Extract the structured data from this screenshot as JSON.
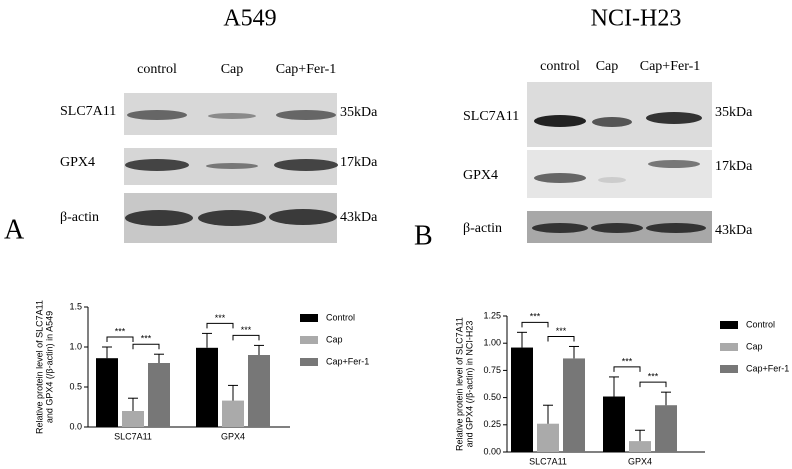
{
  "panels": [
    {
      "letter": "A",
      "title": "A549",
      "lanes": [
        "control",
        "Cap",
        "Cap+Fer-1"
      ],
      "rows": [
        {
          "label": "SLC7A11",
          "size": "35kDa"
        },
        {
          "label": "GPX4",
          "size": "17kDa"
        },
        {
          "label": "β-actin",
          "size": "43kDa"
        }
      ]
    },
    {
      "letter": "B",
      "title": "NCI-H23",
      "lanes": [
        "control",
        "Cap",
        "Cap+Fer-1"
      ],
      "rows": [
        {
          "label": "SLC7A11",
          "size": "35kDa"
        },
        {
          "label": "GPX4",
          "size": "17kDa"
        },
        {
          "label": "β-actin",
          "size": "43kDa"
        }
      ]
    }
  ],
  "chart_data": [
    {
      "type": "bar",
      "y_label": [
        "Relative protein level of SLC7A11",
        "and GPX4 (/β-actin) in A549"
      ],
      "categories": [
        "SLC7A11",
        "GPX4"
      ],
      "series": [
        {
          "name": "Control",
          "color": "#000000",
          "values": [
            0.86,
            0.99
          ],
          "errors": [
            0.14,
            0.18
          ]
        },
        {
          "name": "Cap",
          "color": "#aaaaaa",
          "values": [
            0.2,
            0.33
          ],
          "errors": [
            0.16,
            0.19
          ]
        },
        {
          "name": "Cap+Fer-1",
          "color": "#777777",
          "values": [
            0.8,
            0.9
          ],
          "errors": [
            0.11,
            0.12
          ]
        }
      ],
      "annotations": [
        "***",
        "***",
        "***",
        "***"
      ],
      "ylim": [
        0,
        1.5
      ],
      "yticks": [
        {
          "value": 0,
          "label": "0.0"
        },
        0.5,
        {
          "value": 1,
          "label": "1.0"
        },
        1.5
      ]
    },
    {
      "type": "bar",
      "y_label": [
        "Relative protein level of SLC7A11",
        "and GPX4 (/β-actin) in NCI-H23"
      ],
      "categories": [
        "SLC7A11",
        "GPX4"
      ],
      "series": [
        {
          "name": "Control",
          "color": "#000000",
          "values": [
            0.96,
            0.51
          ],
          "errors": [
            0.14,
            0.18
          ]
        },
        {
          "name": "Cap",
          "color": "#aaaaaa",
          "values": [
            0.26,
            0.1
          ],
          "errors": [
            0.17,
            0.1
          ]
        },
        {
          "name": "Cap+Fer-1",
          "color": "#777777",
          "values": [
            0.86,
            0.43
          ],
          "errors": [
            0.11,
            0.12
          ]
        }
      ],
      "annotations": [
        "***",
        "***",
        "***",
        "***"
      ],
      "ylim": [
        0,
        1.25
      ],
      "yticks": [
        {
          "value": 0,
          "label": "0.00"
        },
        {
          "value": 0.25,
          "label": "0.25"
        },
        {
          "value": 0.5,
          "label": "0.50"
        },
        {
          "value": 0.75,
          "label": "0.75"
        },
        {
          "value": 1,
          "label": "1.00"
        },
        {
          "value": 1.25,
          "label": "1.25"
        }
      ]
    }
  ]
}
